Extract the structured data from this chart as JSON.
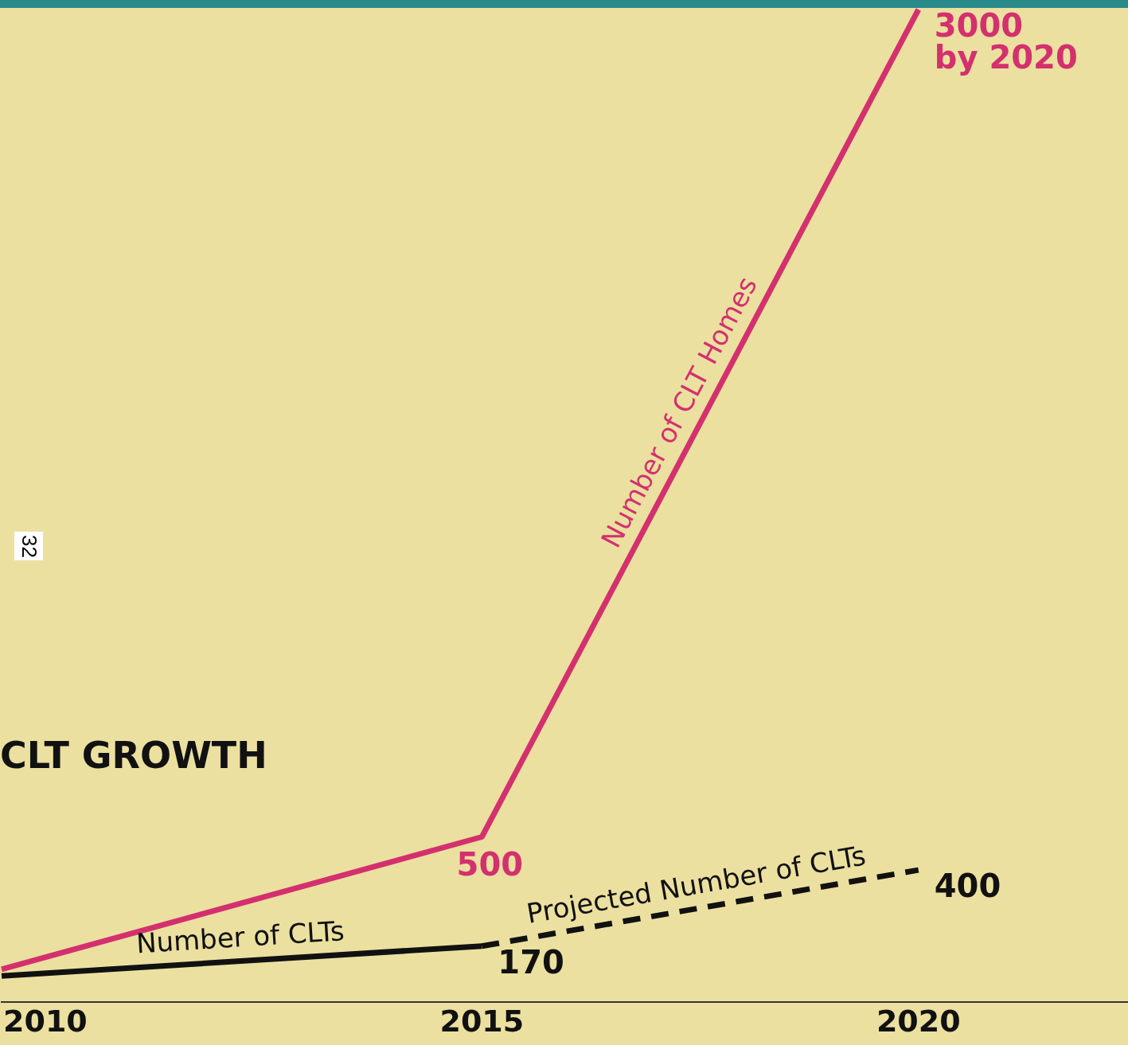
{
  "chart_data": {
    "type": "line",
    "title": "CLT GROWTH",
    "annotations": [
      "32"
    ],
    "x": [
      2009.5,
      2015,
      2020
    ],
    "xlim": [
      2009.5,
      2022.4
    ],
    "xticks": [
      2010,
      2015,
      2020
    ],
    "tick_labels": "x",
    "legend": false,
    "grid": false,
    "series": [
      {
        "name": "Number of CLT Homes",
        "color": "#d4306e",
        "values": [
          100,
          500,
          3000
        ],
        "value_labels": [
          null,
          "500",
          "3000\nby 2020"
        ]
      },
      {
        "name": "Number of CLTs",
        "color": "#111111",
        "x": [
          2009.5,
          2015
        ],
        "values": [
          80,
          170
        ],
        "value_labels": [
          null,
          "170"
        ],
        "line_style": "solid"
      },
      {
        "name": "Projected Number of CLTs",
        "color": "#111111",
        "x": [
          2015,
          2020
        ],
        "values": [
          170,
          400
        ],
        "value_labels": [
          null,
          "400"
        ],
        "line_style": "dashed"
      }
    ]
  }
}
